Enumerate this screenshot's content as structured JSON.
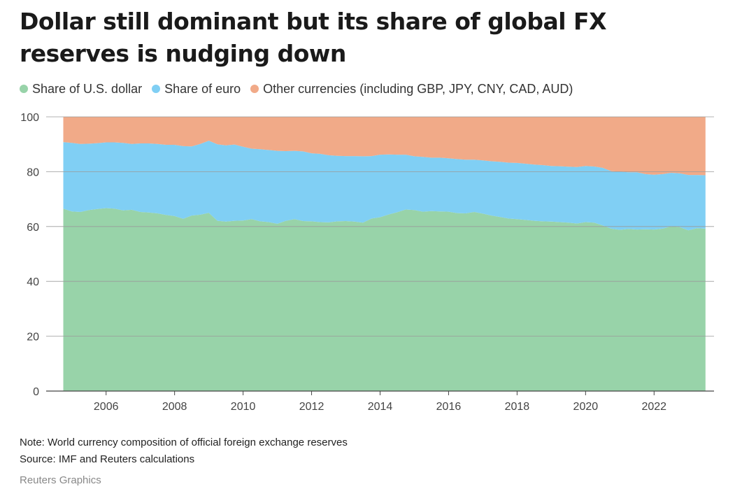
{
  "title": "Dollar still dominant but its share of global FX reserves is nudging down",
  "legend": [
    {
      "label": "Share of U.S. dollar",
      "color": "#98d3a9"
    },
    {
      "label": "Share of euro",
      "color": "#80cff4"
    },
    {
      "label": "Other currencies (including GBP, JPY, CNY, CAD, AUD)",
      "color": "#f1aa88"
    }
  ],
  "note": "Note: World currency composition of official foreign exchange reserves",
  "source": "Source: IMF and Reuters calculations",
  "credit": "Reuters Graphics",
  "chart_data": {
    "type": "area",
    "stacked": true,
    "xlim": [
      2004.25,
      2023.75
    ],
    "ylim": [
      0,
      100
    ],
    "yticks": [
      0,
      20,
      40,
      60,
      80,
      100
    ],
    "xticks": [
      "2006",
      "2008",
      "2010",
      "2012",
      "2014",
      "2016",
      "2018",
      "2020",
      "2022"
    ],
    "x": [
      2004.75,
      2005.0,
      2005.25,
      2005.5,
      2005.75,
      2006.0,
      2006.25,
      2006.5,
      2006.75,
      2007.0,
      2007.25,
      2007.5,
      2007.75,
      2008.0,
      2008.25,
      2008.5,
      2008.75,
      2009.0,
      2009.25,
      2009.5,
      2009.75,
      2010.0,
      2010.25,
      2010.5,
      2010.75,
      2011.0,
      2011.25,
      2011.5,
      2011.75,
      2012.0,
      2012.25,
      2012.5,
      2012.75,
      2013.0,
      2013.25,
      2013.5,
      2013.75,
      2014.0,
      2014.25,
      2014.5,
      2014.75,
      2015.0,
      2015.25,
      2015.5,
      2015.75,
      2016.0,
      2016.25,
      2016.5,
      2016.75,
      2017.0,
      2017.25,
      2017.5,
      2017.75,
      2018.0,
      2018.25,
      2018.5,
      2018.75,
      2019.0,
      2019.25,
      2019.5,
      2019.75,
      2020.0,
      2020.25,
      2020.5,
      2020.75,
      2021.0,
      2021.25,
      2021.5,
      2021.75,
      2022.0,
      2022.25,
      2022.5,
      2022.75,
      2023.0,
      2023.25,
      2023.5
    ],
    "series": [
      {
        "name": "Share of U.S. dollar",
        "values": [
          66.5,
          65.5,
          65.3,
          66.0,
          66.4,
          66.7,
          66.5,
          65.9,
          66.1,
          65.3,
          65.1,
          64.8,
          64.2,
          63.8,
          62.8,
          64.0,
          64.3,
          65.0,
          62.1,
          61.8,
          62.1,
          62.2,
          62.7,
          61.9,
          61.6,
          61.0,
          62.1,
          62.7,
          62.0,
          61.9,
          61.6,
          61.5,
          61.9,
          62.0,
          61.8,
          61.4,
          62.9,
          63.4,
          64.4,
          65.2,
          66.2,
          66.0,
          65.4,
          65.6,
          65.5,
          65.4,
          64.9,
          64.8,
          65.3,
          64.7,
          64.0,
          63.5,
          62.9,
          62.7,
          62.4,
          62.1,
          61.9,
          61.8,
          61.6,
          61.4,
          61.1,
          61.6,
          61.4,
          60.4,
          59.2,
          58.8,
          59.1,
          58.9,
          59.0,
          58.9,
          59.2,
          60.1,
          59.8,
          58.6,
          59.4,
          59.2
        ]
      },
      {
        "name": "Share of euro",
        "values": [
          24.3,
          25.0,
          24.8,
          24.2,
          24.0,
          24.0,
          24.2,
          24.6,
          24.0,
          25.0,
          25.2,
          25.3,
          25.6,
          26.0,
          26.5,
          25.2,
          25.8,
          26.3,
          27.9,
          27.8,
          27.8,
          26.9,
          25.7,
          26.3,
          26.3,
          26.6,
          25.4,
          24.9,
          25.4,
          24.8,
          24.9,
          24.5,
          23.9,
          23.7,
          23.9,
          24.2,
          22.8,
          22.8,
          21.9,
          21.0,
          20.0,
          19.6,
          20.0,
          19.5,
          19.6,
          19.5,
          19.7,
          19.6,
          19.1,
          19.4,
          19.8,
          20.1,
          20.4,
          20.5,
          20.5,
          20.5,
          20.5,
          20.3,
          20.4,
          20.4,
          20.6,
          20.5,
          20.5,
          21.0,
          21.0,
          21.2,
          20.7,
          20.9,
          20.1,
          20.0,
          19.9,
          19.5,
          19.6,
          20.2,
          19.4,
          19.5
        ]
      },
      {
        "name": "Other currencies (including GBP, JPY, CNY, CAD, AUD)",
        "values": [
          9.2,
          9.5,
          9.9,
          9.8,
          9.6,
          9.3,
          9.3,
          9.5,
          9.9,
          9.7,
          9.7,
          9.9,
          10.2,
          10.2,
          10.7,
          10.8,
          9.9,
          8.7,
          10.0,
          10.4,
          10.1,
          10.9,
          11.6,
          11.8,
          12.1,
          12.4,
          12.5,
          12.4,
          12.6,
          13.3,
          13.5,
          14.0,
          14.2,
          14.3,
          14.3,
          14.4,
          14.3,
          13.8,
          13.7,
          13.8,
          13.8,
          14.4,
          14.6,
          14.9,
          14.9,
          15.1,
          15.4,
          15.6,
          15.6,
          15.9,
          16.2,
          16.4,
          16.7,
          16.8,
          17.1,
          17.4,
          17.6,
          17.9,
          18.0,
          18.2,
          18.3,
          17.9,
          18.1,
          18.6,
          19.8,
          20.0,
          20.2,
          20.2,
          20.9,
          21.1,
          20.9,
          20.4,
          20.6,
          21.2,
          21.2,
          21.3
        ]
      }
    ]
  }
}
